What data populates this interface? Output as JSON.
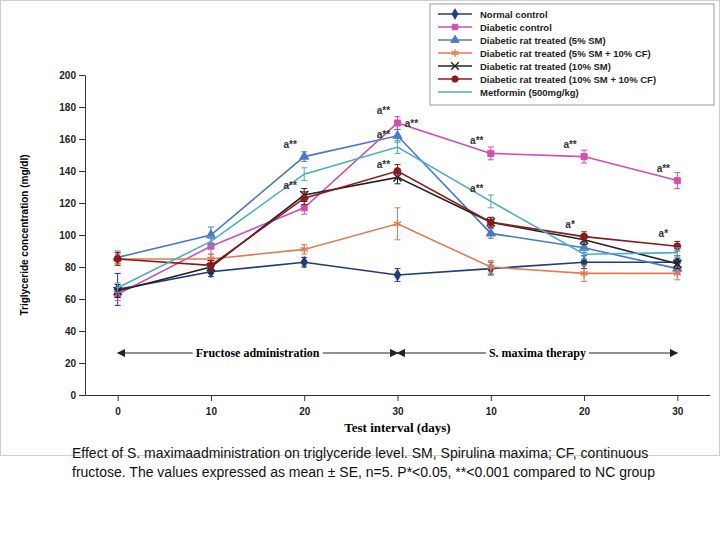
{
  "chart_data": {
    "type": "line",
    "x_label": "Test interval (days)",
    "y_label": "Triglyceride concentration (mg/dl)",
    "caption": "Effect of S. maximaadministration on triglyceride level. SM, Spirulina maxima; CF, continuous fructose. The values expressed as mean ± SE, n=5. P*<0.05, **<0.001 compared to NC group",
    "categories": [
      "0",
      "10",
      "20",
      "30",
      "10",
      "20",
      "30"
    ],
    "ylim": [
      0,
      200
    ],
    "yticks": [
      0,
      20,
      40,
      60,
      80,
      100,
      120,
      140,
      160,
      180,
      200
    ],
    "grid": false,
    "legend": "top-right",
    "series": [
      {
        "name": "Normal control",
        "color": "#1f3b7a",
        "marker": "diamond",
        "values": [
          66,
          77,
          83,
          75,
          79,
          83,
          83
        ],
        "errors": [
          10,
          3,
          3,
          4,
          4,
          4,
          4
        ]
      },
      {
        "name": "Diabetic control",
        "color": "#d04fb0",
        "marker": "square",
        "values": [
          63,
          93,
          117,
          170,
          151,
          149,
          134
        ],
        "errors": [
          4,
          5,
          4,
          4,
          4,
          4,
          5
        ]
      },
      {
        "name": "Diabetic rat treated (5% SM)",
        "color": "#4a78c8",
        "marker": "triangle",
        "values": [
          86,
          100,
          149,
          162,
          101,
          92,
          79
        ],
        "errors": [
          4,
          5,
          3,
          4,
          3,
          3,
          3
        ]
      },
      {
        "name": "Diabetic rat treated (5% SM + 10% CF)",
        "color": "#e07b54",
        "marker": "asterisk",
        "values": [
          85,
          85,
          91,
          107,
          80,
          76,
          76
        ],
        "errors": [
          3,
          3,
          3,
          10,
          4,
          5,
          4
        ]
      },
      {
        "name": "Diabetic rat treated (10% SM)",
        "color": "#222222",
        "marker": "x",
        "values": [
          65,
          80,
          125,
          136,
          108,
          97,
          82
        ],
        "errors": [
          4,
          4,
          4,
          4,
          3,
          3,
          3
        ]
      },
      {
        "name": "Diabetic rat treated (10% SM + 10% CF)",
        "color": "#8b1a1a",
        "marker": "circle",
        "values": [
          85,
          81,
          123,
          140,
          108,
          99,
          93
        ],
        "errors": [
          4,
          3,
          4,
          4,
          3,
          3,
          3
        ]
      },
      {
        "name": "Metformin (500mg/kg)",
        "color": "#4bacc6",
        "marker": "none",
        "values": [
          67,
          96,
          138,
          155,
          121,
          88,
          89
        ],
        "errors": [
          3,
          3,
          4,
          4,
          4,
          3,
          3
        ]
      }
    ],
    "phases": [
      {
        "label": "Fructose administration",
        "start": 0,
        "end": 3
      },
      {
        "label": "S. maxima therapy",
        "start": 3,
        "end": 6
      }
    ],
    "annotations": [
      {
        "text": "a**",
        "series": 2,
        "index": 2
      },
      {
        "text": "a**",
        "series": 5,
        "index": 2
      },
      {
        "text": "a**",
        "series": 1,
        "index": 3
      },
      {
        "text": "a**",
        "series": 2,
        "index": 3
      },
      {
        "text": "a**",
        "series": 6,
        "index": 3
      },
      {
        "text": "a**",
        "series": 4,
        "index": 3
      },
      {
        "text": "a**",
        "series": 1,
        "index": 4
      },
      {
        "text": "a**",
        "series": 6,
        "index": 4
      },
      {
        "text": "a**",
        "series": 1,
        "index": 5
      },
      {
        "text": "a*",
        "series": 5,
        "index": 5
      },
      {
        "text": "a**",
        "series": 1,
        "index": 6
      },
      {
        "text": "a*",
        "series": 5,
        "index": 6
      }
    ]
  }
}
